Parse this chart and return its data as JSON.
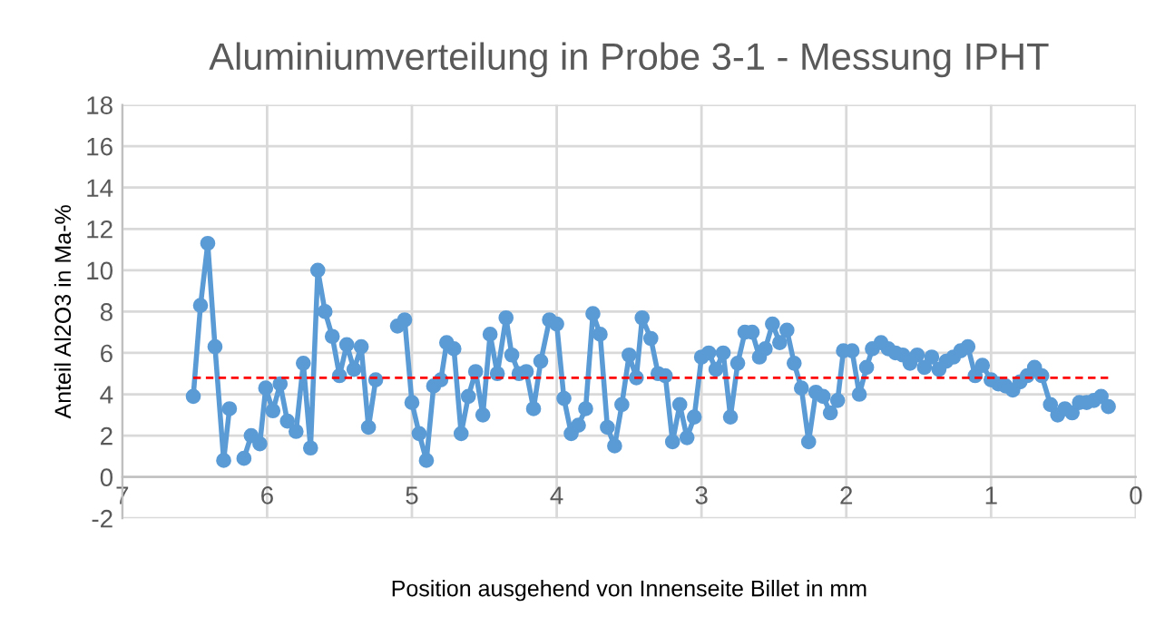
{
  "chart_data": {
    "type": "line",
    "title": "Aluminiumverteilung in Probe 3-1 - Messung IPHT",
    "xlabel": "Position ausgehend von Innenseite Billet in mm",
    "ylabel": "Anteil Al2O3 in Ma-%",
    "xlim": [
      7,
      0
    ],
    "xticks": [
      7,
      6,
      5,
      4,
      3,
      2,
      1,
      0
    ],
    "ylim": [
      -2,
      18
    ],
    "yticks": [
      -2,
      0,
      2,
      4,
      6,
      8,
      10,
      12,
      14,
      16,
      18
    ],
    "grid": true,
    "legend": false,
    "series": [
      {
        "color": "#5b9bd5",
        "marker": "circle",
        "line_style": "solid",
        "x": [
          6.51,
          6.46,
          6.41,
          6.36,
          6.3,
          6.26,
          6.2,
          6.16,
          6.11,
          6.05,
          6.01,
          5.96,
          5.91,
          5.86,
          5.8,
          5.75,
          5.7,
          5.65,
          5.6,
          5.55,
          5.5,
          5.45,
          5.4,
          5.35,
          5.3,
          5.25,
          5.18,
          5.1,
          5.05,
          5.0,
          4.95,
          4.9,
          4.85,
          4.8,
          4.76,
          4.71,
          4.66,
          4.61,
          4.56,
          4.51,
          4.46,
          4.41,
          4.35,
          4.31,
          4.26,
          4.21,
          4.16,
          4.11,
          4.05,
          4.0,
          3.95,
          3.9,
          3.85,
          3.8,
          3.75,
          3.7,
          3.65,
          3.6,
          3.55,
          3.5,
          3.45,
          3.41,
          3.35,
          3.3,
          3.25,
          3.2,
          3.15,
          3.1,
          3.05,
          3.0,
          2.95,
          2.9,
          2.85,
          2.8,
          2.75,
          2.7,
          2.65,
          2.6,
          2.56,
          2.51,
          2.46,
          2.41,
          2.36,
          2.31,
          2.26,
          2.21,
          2.16,
          2.11,
          2.06,
          2.02,
          1.96,
          1.91,
          1.86,
          1.82,
          1.76,
          1.71,
          1.66,
          1.61,
          1.56,
          1.51,
          1.46,
          1.41,
          1.36,
          1.31,
          1.26,
          1.21,
          1.16,
          1.11,
          1.06,
          1.0,
          0.95,
          0.9,
          0.85,
          0.8,
          0.75,
          0.7,
          0.65,
          0.59,
          0.54,
          0.49,
          0.44,
          0.39,
          0.34,
          0.29,
          0.24,
          0.19
        ],
        "values": [
          3.9,
          8.3,
          11.3,
          6.3,
          0.8,
          3.3,
          null,
          0.9,
          2.0,
          1.6,
          4.3,
          3.2,
          4.5,
          2.7,
          2.2,
          5.5,
          1.4,
          10.0,
          8.0,
          6.8,
          4.9,
          6.4,
          5.2,
          6.3,
          2.4,
          4.7,
          null,
          7.3,
          7.6,
          3.6,
          2.1,
          0.8,
          4.4,
          4.7,
          6.5,
          6.2,
          2.1,
          3.9,
          5.1,
          3.0,
          6.9,
          5.0,
          7.7,
          5.9,
          5.0,
          5.1,
          3.3,
          5.6,
          7.6,
          7.4,
          3.8,
          2.1,
          2.5,
          3.3,
          7.9,
          6.9,
          2.4,
          1.5,
          3.5,
          5.9,
          4.8,
          7.7,
          6.7,
          5.0,
          4.9,
          1.7,
          3.5,
          1.9,
          2.9,
          5.8,
          6.0,
          5.2,
          6.0,
          2.9,
          5.5,
          7.0,
          7.0,
          5.8,
          6.2,
          7.4,
          6.5,
          7.1,
          5.5,
          4.3,
          1.7,
          4.1,
          3.9,
          3.1,
          3.7,
          6.1,
          6.1,
          4.0,
          5.3,
          6.2,
          6.5,
          6.2,
          6.0,
          5.9,
          5.5,
          5.9,
          5.3,
          5.8,
          5.2,
          5.6,
          5.8,
          6.1,
          6.3,
          4.9,
          5.4,
          4.7,
          4.5,
          4.4,
          4.2,
          4.6,
          4.9,
          5.3,
          4.9,
          3.5,
          3.0,
          3.3,
          3.1,
          3.6,
          3.6,
          3.7,
          3.9,
          3.4
        ]
      },
      {
        "color": "#ff0000",
        "marker": "none",
        "line_style": "dashed",
        "x": [
          6.51,
          0.19
        ],
        "values": [
          4.8,
          4.8
        ]
      }
    ]
  }
}
